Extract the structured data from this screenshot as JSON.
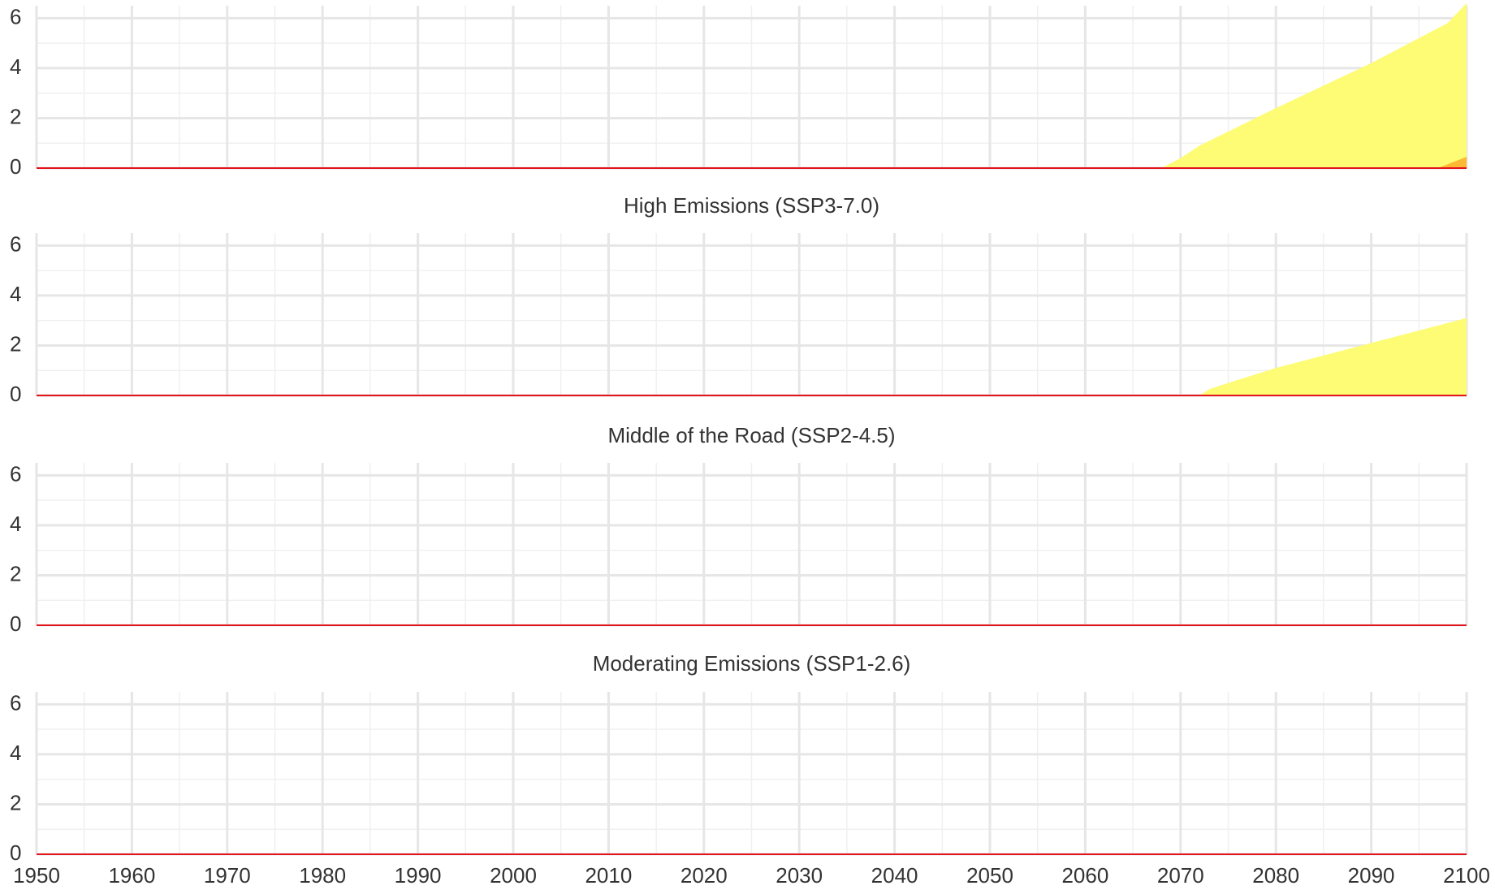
{
  "chart_data": [
    {
      "type": "area",
      "xlim": [
        1950,
        2100
      ],
      "ylim": [
        0,
        6.5
      ],
      "yticks": [
        0,
        2,
        4,
        6
      ],
      "yticks_minor": [
        1,
        3,
        5
      ],
      "xticks": [
        1950,
        1960,
        1970,
        1980,
        1990,
        2000,
        2010,
        2020,
        2030,
        2040,
        2050,
        2060,
        2070,
        2080,
        2090,
        2100
      ],
      "xticks_minor": [
        1955,
        1965,
        1975,
        1985,
        1995,
        2005,
        2015,
        2025,
        2035,
        2045,
        2055,
        2065,
        2075,
        2085,
        2095
      ],
      "xtick_labels": false,
      "grid": true,
      "baseline": 0,
      "baseline_color": "#e3141b",
      "series": [
        {
          "color": "#fdfc74",
          "x": [
            1950,
            2068,
            2070,
            2072,
            2080,
            2090,
            2098,
            2100
          ],
          "values": [
            0,
            0,
            0.4,
            0.9,
            2.4,
            4.2,
            5.8,
            6.6
          ]
        },
        {
          "color": "#fdb933",
          "x": [
            1950,
            2097,
            2100
          ],
          "values": [
            0,
            0,
            0.45
          ]
        }
      ]
    },
    {
      "type": "area",
      "title": "High Emissions (SSP3-7.0)",
      "xlim": [
        1950,
        2100
      ],
      "ylim": [
        0,
        6.5
      ],
      "yticks": [
        0,
        2,
        4,
        6
      ],
      "yticks_minor": [
        1,
        3,
        5
      ],
      "xticks": [
        1950,
        1960,
        1970,
        1980,
        1990,
        2000,
        2010,
        2020,
        2030,
        2040,
        2050,
        2060,
        2070,
        2080,
        2090,
        2100
      ],
      "xticks_minor": [
        1955,
        1965,
        1975,
        1985,
        1995,
        2005,
        2015,
        2025,
        2035,
        2045,
        2055,
        2065,
        2075,
        2085,
        2095
      ],
      "xtick_labels": false,
      "grid": true,
      "baseline": 0,
      "baseline_color": "#e3141b",
      "series": [
        {
          "color": "#fdfc74",
          "x": [
            1950,
            2072,
            2073,
            2075,
            2080,
            2090,
            2100
          ],
          "values": [
            0,
            0,
            0.25,
            0.5,
            1.1,
            2.1,
            3.1
          ]
        }
      ]
    },
    {
      "type": "area",
      "title": "Middle of the Road (SSP2-4.5)",
      "xlim": [
        1950,
        2100
      ],
      "ylim": [
        0,
        6.5
      ],
      "yticks": [
        0,
        2,
        4,
        6
      ],
      "yticks_minor": [
        1,
        3,
        5
      ],
      "xticks": [
        1950,
        1960,
        1970,
        1980,
        1990,
        2000,
        2010,
        2020,
        2030,
        2040,
        2050,
        2060,
        2070,
        2080,
        2090,
        2100
      ],
      "xticks_minor": [
        1955,
        1965,
        1975,
        1985,
        1995,
        2005,
        2015,
        2025,
        2035,
        2045,
        2055,
        2065,
        2075,
        2085,
        2095
      ],
      "xtick_labels": false,
      "grid": true,
      "baseline": 0,
      "baseline_color": "#e3141b",
      "series": [
        {
          "color": "#fdfc74",
          "x": [
            1950,
            2100
          ],
          "values": [
            0,
            0
          ]
        }
      ]
    },
    {
      "type": "area",
      "title": "Moderating Emissions (SSP1-2.6)",
      "xlim": [
        1950,
        2100
      ],
      "ylim": [
        0,
        6.5
      ],
      "yticks": [
        0,
        2,
        4,
        6
      ],
      "yticks_minor": [
        1,
        3,
        5
      ],
      "xticks": [
        1950,
        1960,
        1970,
        1980,
        1990,
        2000,
        2010,
        2020,
        2030,
        2040,
        2050,
        2060,
        2070,
        2080,
        2090,
        2100
      ],
      "xticks_minor": [
        1955,
        1965,
        1975,
        1985,
        1995,
        2005,
        2015,
        2025,
        2035,
        2045,
        2055,
        2065,
        2075,
        2085,
        2095
      ],
      "xtick_labels": true,
      "grid": true,
      "baseline": 0,
      "baseline_color": "#e3141b",
      "series": [
        {
          "color": "#fdfc74",
          "x": [
            1950,
            2100
          ],
          "values": [
            0,
            0
          ]
        }
      ]
    }
  ]
}
